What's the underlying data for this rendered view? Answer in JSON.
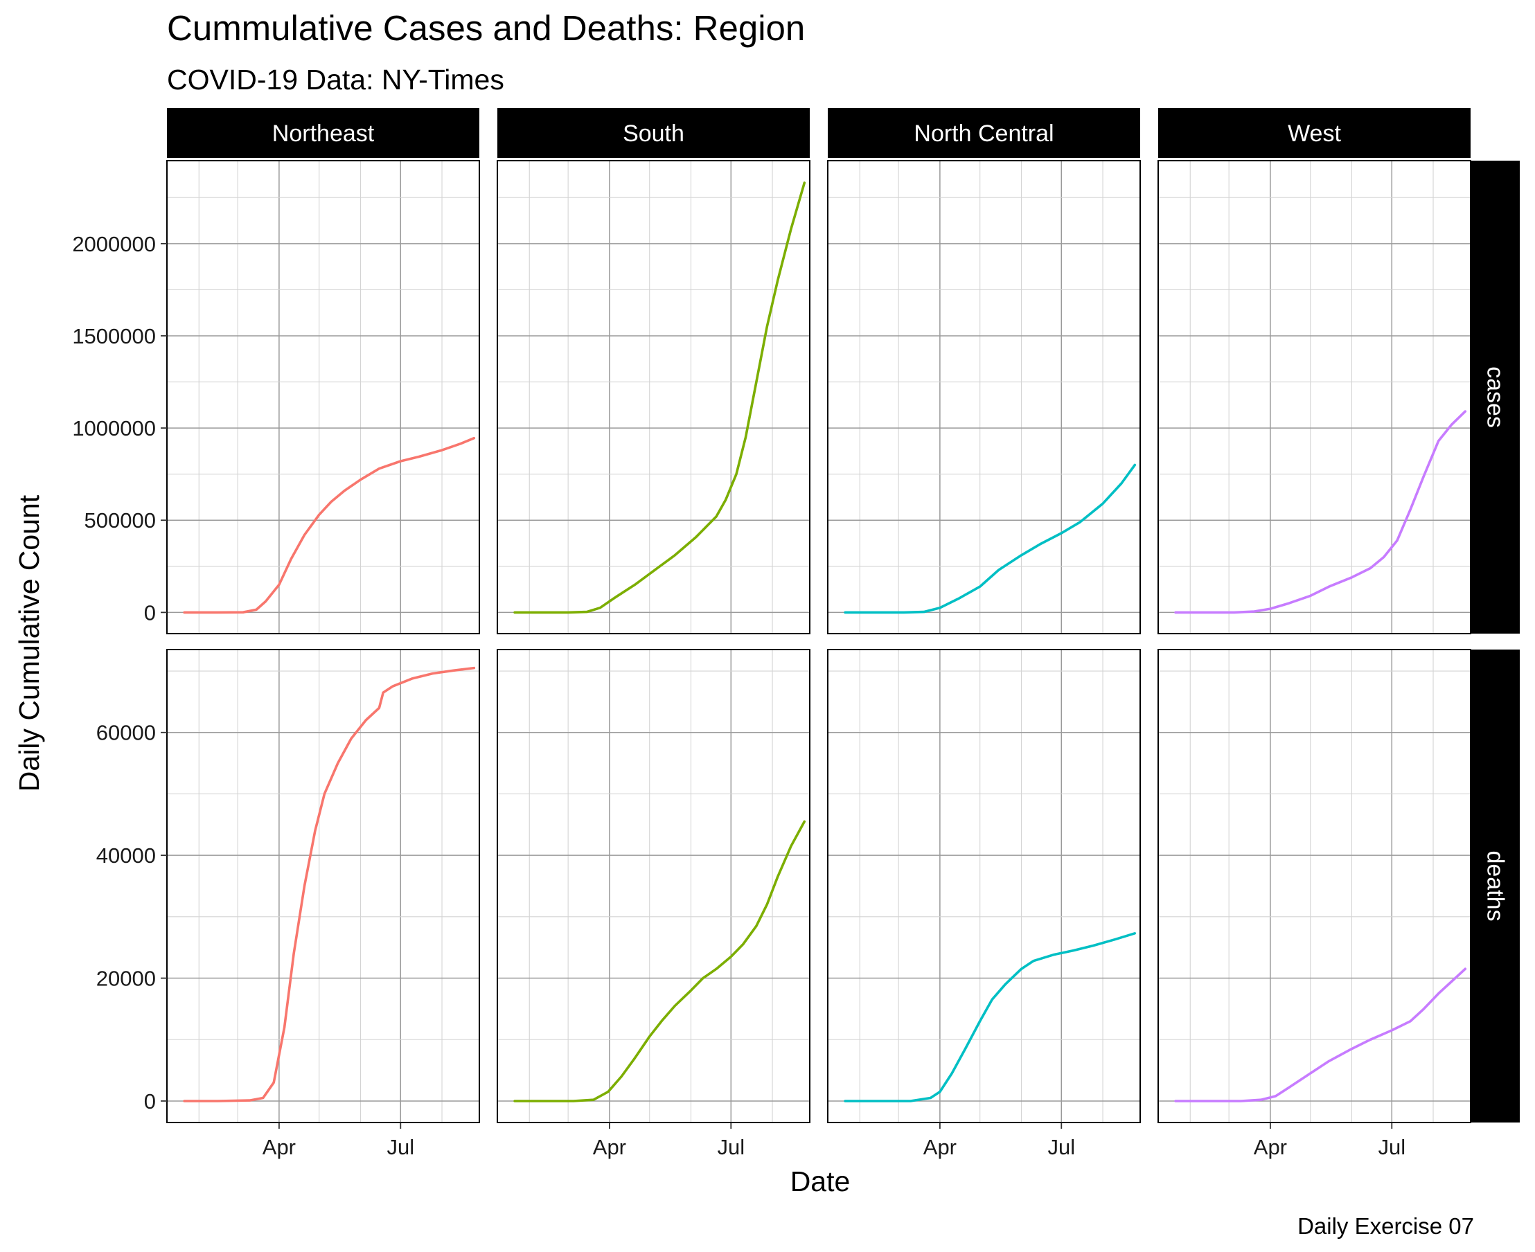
{
  "chart_data": {
    "type": "line",
    "title": "Cummulative Cases and Deaths: Region",
    "subtitle": "COVID-19 Data: NY-Times",
    "xlabel": "Date",
    "ylabel": "Daily Cumulative Count",
    "caption": "Daily Exercise 07",
    "x_ticks": [
      "Apr",
      "Jul"
    ],
    "x_range": [
      "2020-01-08",
      "2020-08-29"
    ],
    "grid": true,
    "legend": "none",
    "columns": [
      "Northeast",
      "South",
      "North Central",
      "West"
    ],
    "rows": [
      {
        "name": "cases",
        "ylim": [
          -115000,
          2450000
        ],
        "y_ticks": [
          0,
          500000,
          1000000,
          1500000,
          2000000
        ],
        "y_tick_labels": [
          "0",
          "500000",
          "1000000",
          "1500000",
          "2000000"
        ]
      },
      {
        "name": "deaths",
        "ylim": [
          -3500,
          73500
        ],
        "y_ticks": [
          0,
          20000,
          40000,
          60000
        ],
        "y_tick_labels": [
          "0",
          "20000",
          "40000",
          "60000"
        ]
      }
    ],
    "series": [
      {
        "region": "Northeast",
        "color": "#F8766D",
        "cases": [
          [
            "2020-01-21",
            0
          ],
          [
            "2020-02-15",
            0
          ],
          [
            "2020-03-05",
            500
          ],
          [
            "2020-03-15",
            15000
          ],
          [
            "2020-03-22",
            60000
          ],
          [
            "2020-04-01",
            150000
          ],
          [
            "2020-04-10",
            290000
          ],
          [
            "2020-04-20",
            420000
          ],
          [
            "2020-05-01",
            530000
          ],
          [
            "2020-05-10",
            600000
          ],
          [
            "2020-05-20",
            660000
          ],
          [
            "2020-06-01",
            720000
          ],
          [
            "2020-06-15",
            780000
          ],
          [
            "2020-07-01",
            820000
          ],
          [
            "2020-07-15",
            845000
          ],
          [
            "2020-08-01",
            880000
          ],
          [
            "2020-08-15",
            915000
          ],
          [
            "2020-08-25",
            945000
          ]
        ],
        "deaths": [
          [
            "2020-01-21",
            0
          ],
          [
            "2020-02-15",
            0
          ],
          [
            "2020-03-10",
            100
          ],
          [
            "2020-03-20",
            500
          ],
          [
            "2020-03-28",
            3000
          ],
          [
            "2020-04-05",
            12000
          ],
          [
            "2020-04-12",
            24000
          ],
          [
            "2020-04-20",
            35000
          ],
          [
            "2020-04-28",
            44000
          ],
          [
            "2020-05-05",
            50000
          ],
          [
            "2020-05-15",
            55000
          ],
          [
            "2020-05-25",
            59000
          ],
          [
            "2020-06-05",
            62000
          ],
          [
            "2020-06-15",
            64000
          ],
          [
            "2020-06-18",
            66500
          ],
          [
            "2020-06-25",
            67500
          ],
          [
            "2020-07-10",
            68800
          ],
          [
            "2020-07-25",
            69600
          ],
          [
            "2020-08-10",
            70100
          ],
          [
            "2020-08-25",
            70500
          ]
        ]
      },
      {
        "region": "South",
        "color": "#7CAE00",
        "cases": [
          [
            "2020-01-21",
            0
          ],
          [
            "2020-03-01",
            0
          ],
          [
            "2020-03-15",
            3000
          ],
          [
            "2020-03-25",
            25000
          ],
          [
            "2020-04-05",
            80000
          ],
          [
            "2020-04-20",
            150000
          ],
          [
            "2020-05-05",
            230000
          ],
          [
            "2020-05-20",
            310000
          ],
          [
            "2020-06-05",
            410000
          ],
          [
            "2020-06-20",
            520000
          ],
          [
            "2020-06-27",
            610000
          ],
          [
            "2020-07-05",
            750000
          ],
          [
            "2020-07-12",
            950000
          ],
          [
            "2020-07-20",
            1250000
          ],
          [
            "2020-07-28",
            1550000
          ],
          [
            "2020-08-05",
            1800000
          ],
          [
            "2020-08-15",
            2080000
          ],
          [
            "2020-08-25",
            2330000
          ]
        ],
        "deaths": [
          [
            "2020-01-21",
            0
          ],
          [
            "2020-03-05",
            0
          ],
          [
            "2020-03-20",
            200
          ],
          [
            "2020-03-31",
            1500
          ],
          [
            "2020-04-10",
            4000
          ],
          [
            "2020-04-20",
            7000
          ],
          [
            "2020-05-01",
            10500
          ],
          [
            "2020-05-10",
            13000
          ],
          [
            "2020-05-20",
            15500
          ],
          [
            "2020-06-01",
            18000
          ],
          [
            "2020-06-10",
            20000
          ],
          [
            "2020-06-20",
            21500
          ],
          [
            "2020-07-01",
            23500
          ],
          [
            "2020-07-10",
            25500
          ],
          [
            "2020-07-20",
            28500
          ],
          [
            "2020-07-28",
            32000
          ],
          [
            "2020-08-05",
            36500
          ],
          [
            "2020-08-15",
            41500
          ],
          [
            "2020-08-25",
            45500
          ]
        ]
      },
      {
        "region": "North Central",
        "color": "#00BFC4",
        "cases": [
          [
            "2020-01-21",
            0
          ],
          [
            "2020-03-05",
            0
          ],
          [
            "2020-03-20",
            3000
          ],
          [
            "2020-04-01",
            25000
          ],
          [
            "2020-04-15",
            75000
          ],
          [
            "2020-05-01",
            140000
          ],
          [
            "2020-05-15",
            230000
          ],
          [
            "2020-06-01",
            310000
          ],
          [
            "2020-06-15",
            370000
          ],
          [
            "2020-07-01",
            430000
          ],
          [
            "2020-07-15",
            490000
          ],
          [
            "2020-08-01",
            590000
          ],
          [
            "2020-08-15",
            700000
          ],
          [
            "2020-08-25",
            800000
          ]
        ],
        "deaths": [
          [
            "2020-01-21",
            0
          ],
          [
            "2020-03-10",
            0
          ],
          [
            "2020-03-25",
            500
          ],
          [
            "2020-04-01",
            1500
          ],
          [
            "2020-04-10",
            4500
          ],
          [
            "2020-04-20",
            8500
          ],
          [
            "2020-05-01",
            13000
          ],
          [
            "2020-05-10",
            16500
          ],
          [
            "2020-05-20",
            19000
          ],
          [
            "2020-06-01",
            21500
          ],
          [
            "2020-06-10",
            22800
          ],
          [
            "2020-06-25",
            23800
          ],
          [
            "2020-07-10",
            24500
          ],
          [
            "2020-07-25",
            25300
          ],
          [
            "2020-08-10",
            26300
          ],
          [
            "2020-08-25",
            27300
          ]
        ]
      },
      {
        "region": "West",
        "color": "#C77CFF",
        "cases": [
          [
            "2020-01-21",
            0
          ],
          [
            "2020-03-05",
            0
          ],
          [
            "2020-03-20",
            5000
          ],
          [
            "2020-04-01",
            20000
          ],
          [
            "2020-04-15",
            50000
          ],
          [
            "2020-05-01",
            90000
          ],
          [
            "2020-05-15",
            140000
          ],
          [
            "2020-06-01",
            190000
          ],
          [
            "2020-06-15",
            240000
          ],
          [
            "2020-06-25",
            300000
          ],
          [
            "2020-07-05",
            390000
          ],
          [
            "2020-07-15",
            560000
          ],
          [
            "2020-07-25",
            740000
          ],
          [
            "2020-08-05",
            930000
          ],
          [
            "2020-08-15",
            1020000
          ],
          [
            "2020-08-25",
            1090000
          ]
        ],
        "deaths": [
          [
            "2020-01-21",
            0
          ],
          [
            "2020-03-10",
            0
          ],
          [
            "2020-03-25",
            200
          ],
          [
            "2020-04-05",
            800
          ],
          [
            "2020-04-15",
            2200
          ],
          [
            "2020-05-01",
            4500
          ],
          [
            "2020-05-15",
            6500
          ],
          [
            "2020-06-01",
            8500
          ],
          [
            "2020-06-15",
            10000
          ],
          [
            "2020-07-01",
            11500
          ],
          [
            "2020-07-15",
            13000
          ],
          [
            "2020-07-25",
            15000
          ],
          [
            "2020-08-05",
            17500
          ],
          [
            "2020-08-15",
            19500
          ],
          [
            "2020-08-25",
            21500
          ]
        ]
      }
    ]
  }
}
